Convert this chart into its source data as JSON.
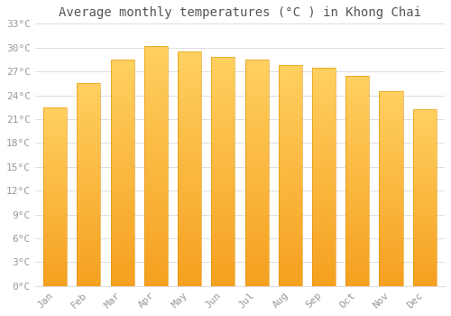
{
  "title": "Average monthly temperatures (°C ) in Khong Chai",
  "months": [
    "Jan",
    "Feb",
    "Mar",
    "Apr",
    "May",
    "Jun",
    "Jul",
    "Aug",
    "Sep",
    "Oct",
    "Nov",
    "Dec"
  ],
  "temperatures": [
    22.5,
    25.5,
    28.5,
    30.2,
    29.5,
    28.8,
    28.5,
    27.8,
    27.5,
    26.5,
    24.5,
    22.2
  ],
  "bar_color": "#FFA500",
  "bar_color_bottom": "#F5A623",
  "bar_color_top": "#FFD966",
  "background_color": "#ffffff",
  "grid_color": "#dddddd",
  "ylim": [
    0,
    33
  ],
  "yticks": [
    0,
    3,
    6,
    9,
    12,
    15,
    18,
    21,
    24,
    27,
    30,
    33
  ],
  "title_fontsize": 10,
  "tick_fontsize": 8,
  "text_color": "#999999",
  "title_color": "#555555"
}
